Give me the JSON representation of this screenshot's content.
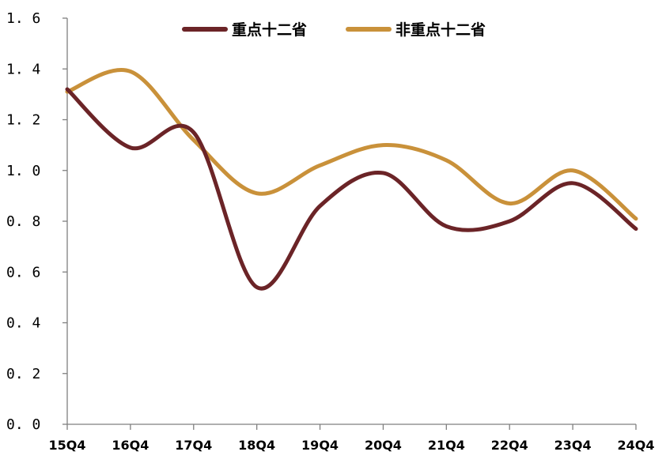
{
  "chart_data": {
    "type": "line",
    "title": "",
    "xlabel": "",
    "ylabel": "",
    "categories": [
      "15Q4",
      "16Q4",
      "17Q4",
      "18Q4",
      "19Q4",
      "20Q4",
      "21Q4",
      "22Q4",
      "23Q4",
      "24Q4"
    ],
    "ylim": [
      0.0,
      1.6
    ],
    "yticks": [
      "0.0",
      "0.2",
      "0.4",
      "0.6",
      "0.8",
      "1.0",
      "1.2",
      "1.4",
      "1.6"
    ],
    "grid": false,
    "legend_position": "top-center",
    "series": [
      {
        "name": "重点十二省",
        "color": "#6b2427",
        "values": [
          1.32,
          1.09,
          1.15,
          0.54,
          0.86,
          0.99,
          0.78,
          0.8,
          0.95,
          0.77
        ]
      },
      {
        "name": "非重点十二省",
        "color": "#c9913a",
        "values": [
          1.31,
          1.39,
          1.12,
          0.91,
          1.02,
          1.1,
          1.04,
          0.87,
          1.0,
          0.81
        ]
      }
    ]
  }
}
